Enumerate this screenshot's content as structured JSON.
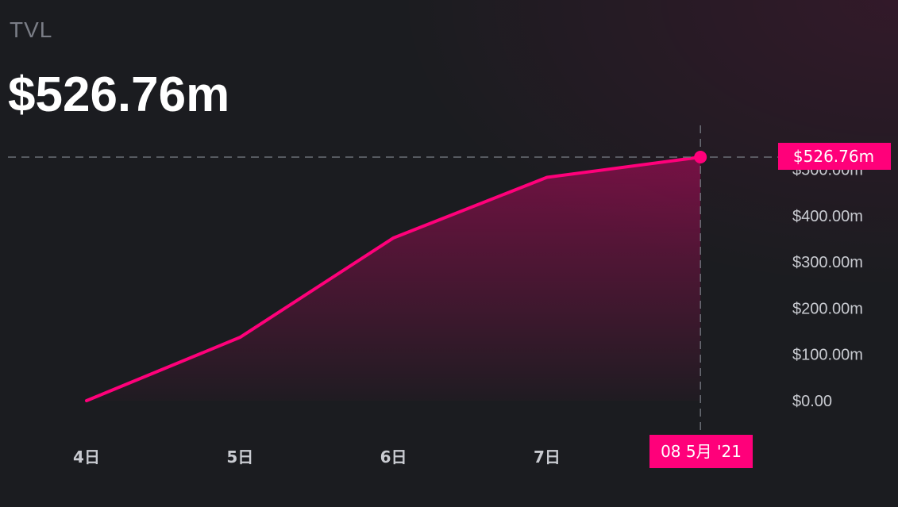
{
  "header": {
    "title": "TVL",
    "value": "$526.76m"
  },
  "colors": {
    "accent": "#ff007a",
    "background": "#1b1c20",
    "tick_text": "#c9cbd1",
    "title_text": "#7a7d86"
  },
  "chart_data": {
    "type": "area",
    "title": "TVL",
    "x": [
      "4日",
      "5日",
      "6日",
      "7日",
      "08 5月 '21"
    ],
    "x_tick_labels": [
      "4日",
      "5日",
      "6日",
      "7日"
    ],
    "series": [
      {
        "values": [
          0,
          137,
          352,
          483,
          526.76
        ]
      }
    ],
    "y_unit": "$m",
    "y_tick_labels": [
      "$0.00",
      "$100.00m",
      "$200.00m",
      "$300.00m",
      "$400.00m",
      "$500.00m"
    ],
    "ylim": [
      0,
      526.76
    ],
    "grid": false,
    "crosshair": {
      "x_label": "08 5月 '21",
      "y_label": "$526.76m",
      "value": 526.76
    }
  }
}
